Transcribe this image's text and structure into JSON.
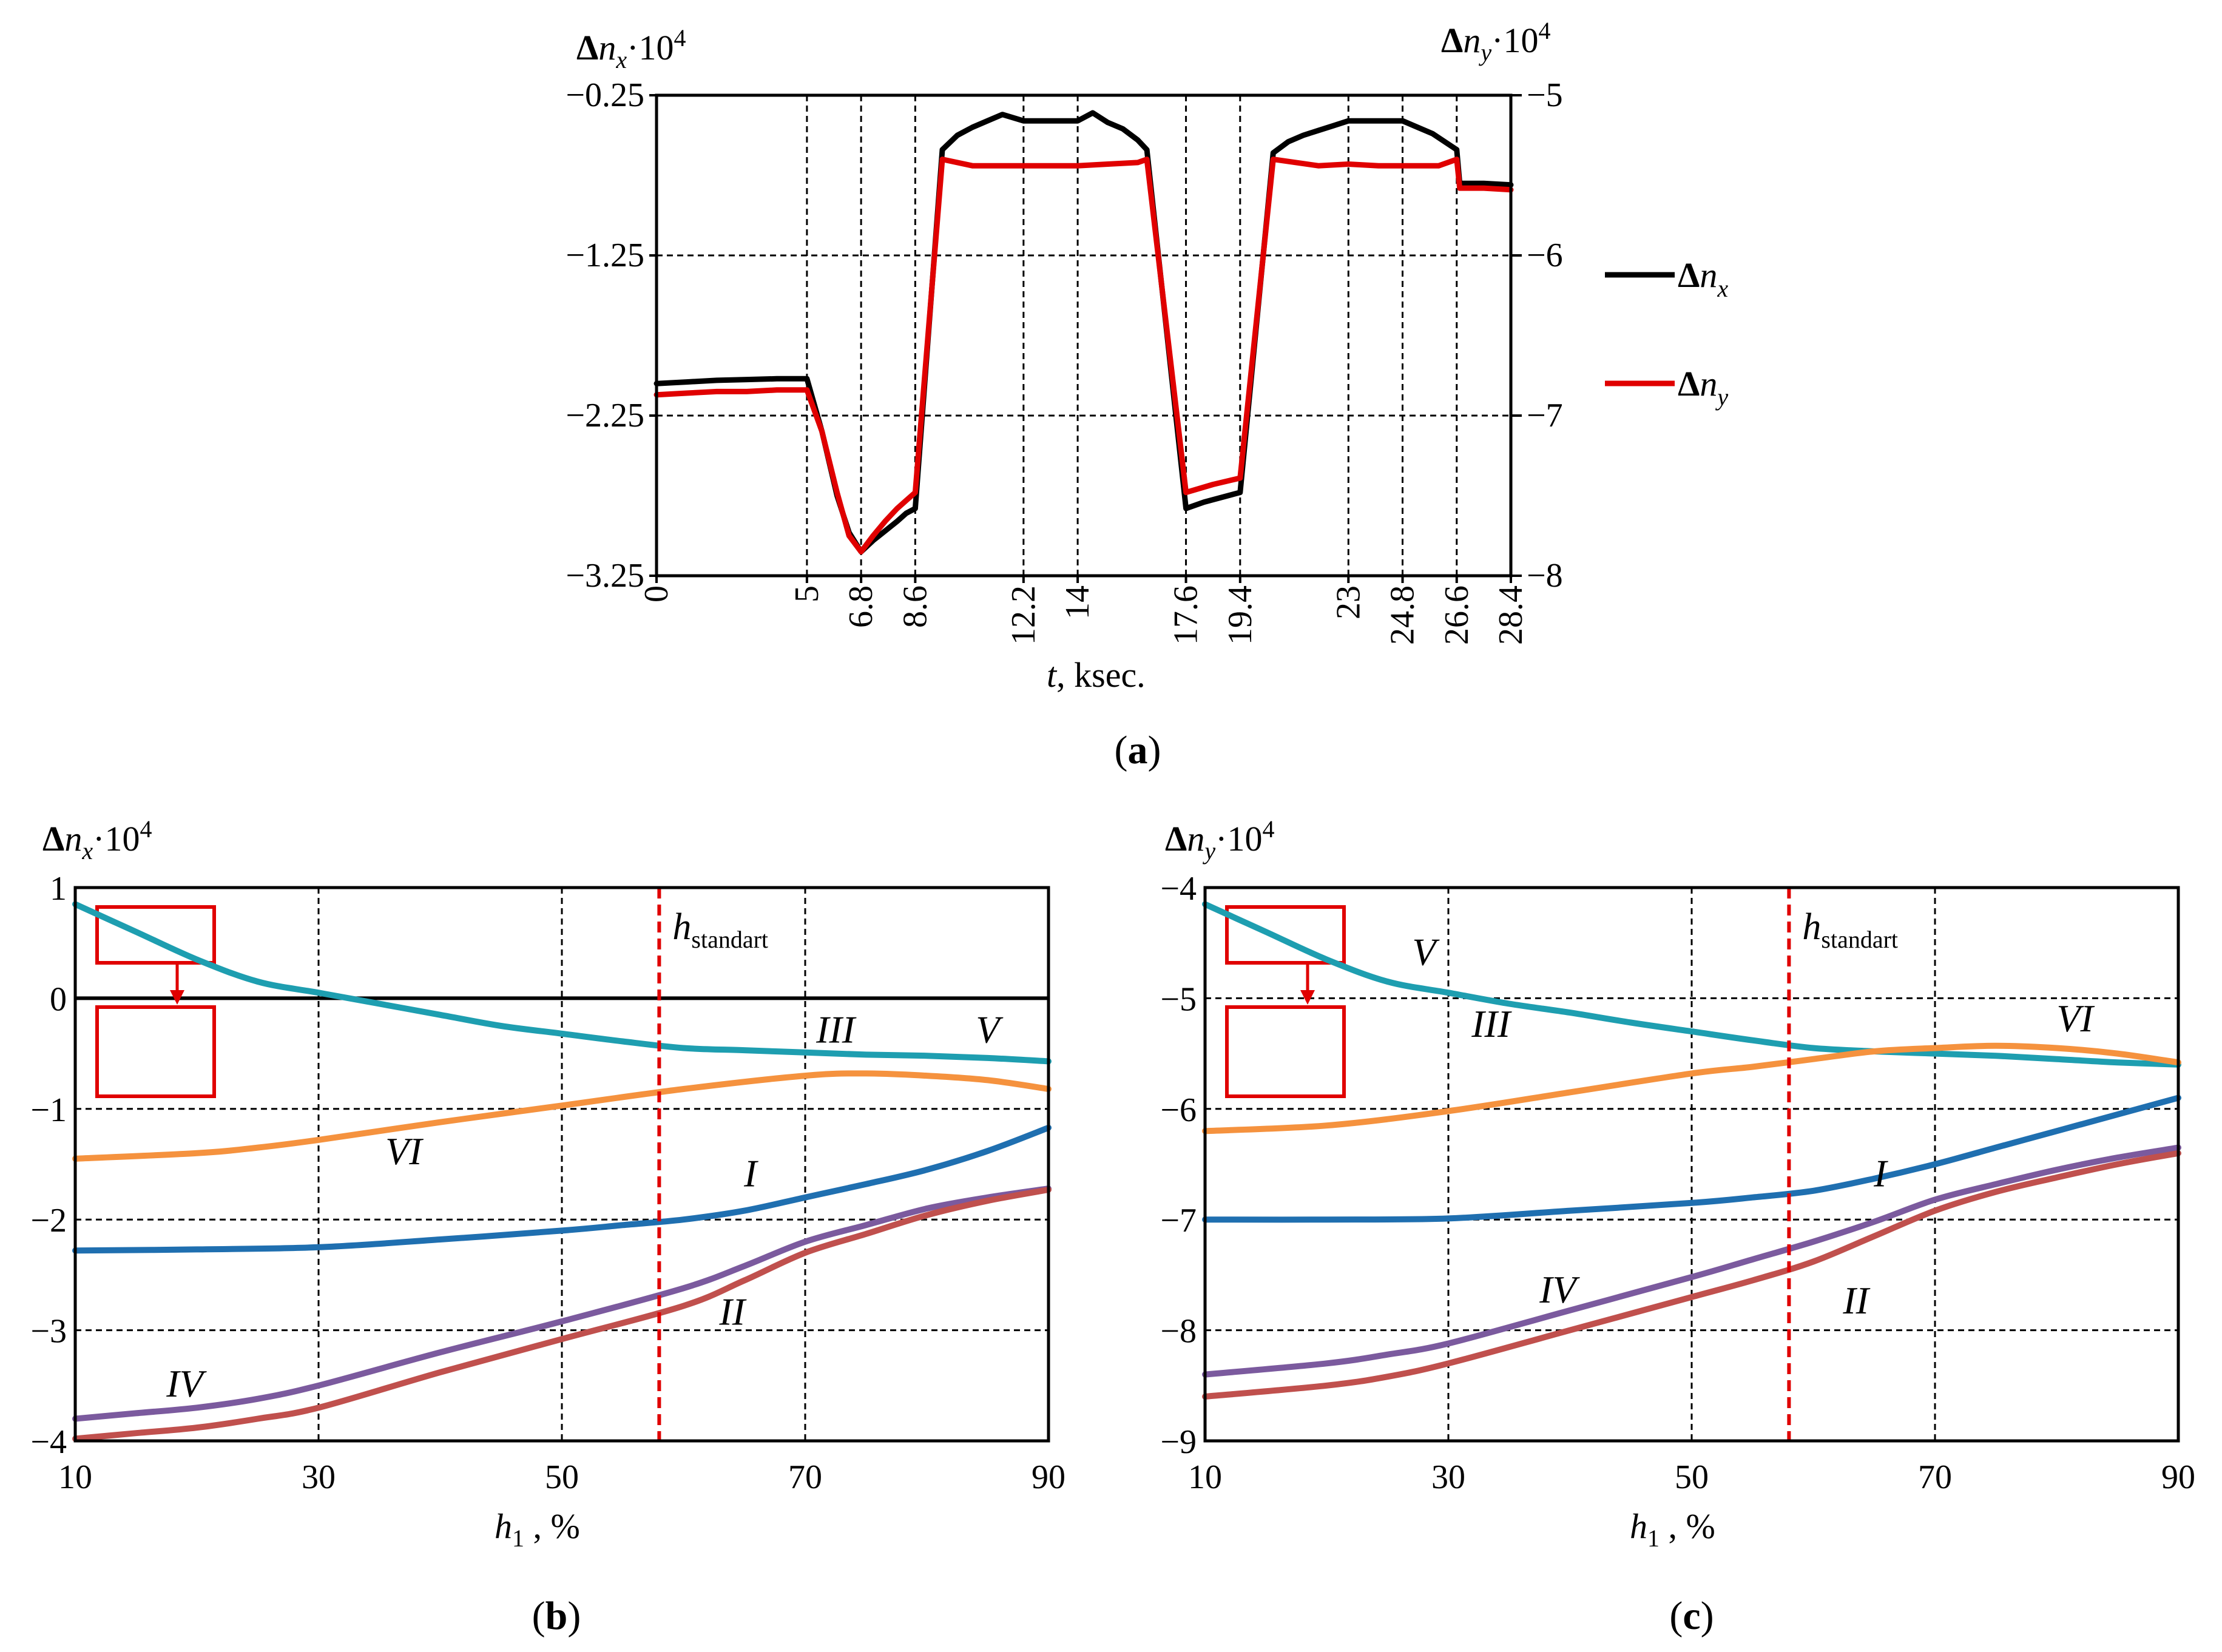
{
  "chart_data": [
    {
      "id": "a",
      "type": "line",
      "caption": "a",
      "xlabel_var": "t",
      "xlabel_unit": ", ksec.",
      "xticks": [
        "0",
        "5",
        "6.8",
        "8.6",
        "12.2",
        "14",
        "17.6",
        "19.4",
        "23",
        "24.8",
        "26.6",
        "28.4"
      ],
      "ylabel_left": {
        "delta": "Δ",
        "var": "n",
        "sub": "x",
        "mult": "·10",
        "sup": "4"
      },
      "ylabel_right": {
        "delta": "Δ",
        "var": "n",
        "sub": "y",
        "mult": "·10",
        "sup": "4"
      },
      "ylim_left": [
        -3.25,
        -0.25
      ],
      "ylim_right": [
        -8,
        -5
      ],
      "yticks_left": [
        "-0.25",
        "-1.25",
        "-2.25",
        "-3.25"
      ],
      "yticks_right": [
        "-5",
        "-6",
        "-7",
        "-8"
      ],
      "legend": [
        {
          "delta": "Δ",
          "var": "n",
          "sub": "x",
          "color": "#000000"
        },
        {
          "delta": "Δ",
          "var": "n",
          "sub": "y",
          "color": "#e00000"
        }
      ],
      "series": [
        {
          "name": "Δn_x",
          "axis": "left",
          "color": "#000000",
          "x": [
            0,
            1,
            2,
            3,
            4,
            5,
            5.5,
            6,
            6.4,
            6.8,
            7.2,
            7.6,
            8,
            8.3,
            8.6,
            9.5,
            10,
            10.5,
            11,
            11.5,
            12.2,
            13,
            14,
            14.5,
            15,
            15.5,
            16,
            16.3,
            17.6,
            18.2,
            18.8,
            19.4,
            20.5,
            21,
            21.5,
            22,
            22.5,
            23,
            24,
            24.8,
            25.3,
            25.8,
            26.6,
            26.7,
            27.5,
            28.4
          ],
          "y": [
            -2.05,
            -2.04,
            -2.03,
            -2.025,
            -2.02,
            -2.02,
            -2.35,
            -2.75,
            -2.98,
            -3.1,
            -3.03,
            -2.97,
            -2.91,
            -2.86,
            -2.83,
            -0.59,
            -0.5,
            -0.45,
            -0.41,
            -0.37,
            -0.41,
            -0.41,
            -0.41,
            -0.36,
            -0.42,
            -0.46,
            -0.53,
            -0.59,
            -2.83,
            -2.79,
            -2.76,
            -2.73,
            -0.61,
            -0.54,
            -0.5,
            -0.47,
            -0.44,
            -0.41,
            -0.41,
            -0.41,
            -0.45,
            -0.49,
            -0.59,
            -0.8,
            -0.8,
            -0.81
          ]
        },
        {
          "name": "Δn_y",
          "axis": "right",
          "color": "#e00000",
          "x": [
            0,
            1,
            2,
            3,
            4,
            5,
            5.5,
            6,
            6.4,
            6.8,
            7.2,
            7.6,
            8,
            8.3,
            8.6,
            9.5,
            10.5,
            12.2,
            13,
            14,
            15,
            16,
            16.3,
            17.6,
            18.5,
            19.4,
            20.5,
            22,
            23,
            24,
            24.8,
            26,
            26.6,
            26.7,
            27.5,
            28.4
          ],
          "y": [
            -6.87,
            -6.86,
            -6.85,
            -6.85,
            -6.84,
            -6.84,
            -7.1,
            -7.48,
            -7.75,
            -7.85,
            -7.75,
            -7.66,
            -7.58,
            -7.53,
            -7.48,
            -5.4,
            -5.44,
            -5.44,
            -5.44,
            -5.44,
            -5.43,
            -5.42,
            -5.4,
            -7.48,
            -7.43,
            -7.39,
            -5.4,
            -5.44,
            -5.43,
            -5.44,
            -5.44,
            -5.44,
            -5.4,
            -5.58,
            -5.58,
            -5.59
          ]
        }
      ]
    },
    {
      "id": "b",
      "type": "line",
      "caption": "b",
      "xlabel_var": "h",
      "xlabel_sub": "1",
      "xlabel_unit": " , %",
      "xlim": [
        10,
        90
      ],
      "xticks": [
        "10",
        "30",
        "50",
        "70",
        "90"
      ],
      "ylabel": {
        "delta": "Δ",
        "var": "n",
        "sub": "x",
        "mult": "·10",
        "sup": "4"
      },
      "ylim": [
        -4,
        1
      ],
      "yticks": [
        "1",
        "0",
        "-1",
        "-2",
        "-3",
        "-4"
      ],
      "h_standart": 58,
      "annotation": {
        "var": "h",
        "sub": "standart"
      },
      "series": [
        {
          "name": "V",
          "color": "#1e9eb0",
          "x": [
            10,
            15,
            20,
            25,
            30,
            35,
            40,
            45,
            50,
            55,
            60,
            65,
            70,
            75,
            80,
            85,
            90
          ],
          "y": [
            0.85,
            0.6,
            0.35,
            0.15,
            0.05,
            -0.05,
            -0.15,
            -0.25,
            -0.32,
            -0.39,
            -0.45,
            -0.47,
            -0.49,
            -0.51,
            -0.52,
            -0.54,
            -0.57
          ]
        },
        {
          "name": "VI",
          "color": "#f5923e",
          "x": [
            10,
            20,
            25,
            30,
            40,
            50,
            60,
            70,
            75,
            80,
            85,
            90
          ],
          "y": [
            -1.45,
            -1.4,
            -1.35,
            -1.28,
            -1.12,
            -0.97,
            -0.82,
            -0.7,
            -0.68,
            -0.7,
            -0.74,
            -0.82
          ]
        },
        {
          "name": "I",
          "color": "#1f6fb0",
          "x": [
            10,
            20,
            30,
            40,
            50,
            55,
            60,
            65,
            70,
            75,
            80,
            85,
            90
          ],
          "y": [
            -2.28,
            -2.27,
            -2.25,
            -2.18,
            -2.1,
            -2.05,
            -2.0,
            -1.92,
            -1.8,
            -1.68,
            -1.55,
            -1.38,
            -1.17
          ]
        },
        {
          "name": "IV",
          "color": "#7b5a9e",
          "x": [
            10,
            15,
            20,
            25,
            30,
            40,
            50,
            60,
            65,
            70,
            75,
            80,
            85,
            90
          ],
          "y": [
            -3.8,
            -3.75,
            -3.7,
            -3.62,
            -3.5,
            -3.2,
            -2.92,
            -2.62,
            -2.42,
            -2.2,
            -2.05,
            -1.9,
            -1.8,
            -1.72
          ]
        },
        {
          "name": "II",
          "color": "#c0504d",
          "x": [
            10,
            15,
            20,
            25,
            30,
            40,
            50,
            60,
            65,
            70,
            75,
            80,
            85,
            90
          ],
          "y": [
            -3.98,
            -3.93,
            -3.88,
            -3.8,
            -3.7,
            -3.38,
            -3.08,
            -2.78,
            -2.55,
            -2.3,
            -2.13,
            -1.96,
            -1.83,
            -1.73
          ]
        }
      ],
      "series_labels": [
        {
          "name": "III",
          "x": 72.5,
          "y": -0.4
        },
        {
          "name": "V",
          "x": 85,
          "y": -0.4
        },
        {
          "name": "VI",
          "x": 37,
          "y": -1.5
        },
        {
          "name": "I",
          "x": 65.5,
          "y": -1.7
        },
        {
          "name": "II",
          "x": 64,
          "y": -2.95
        },
        {
          "name": "IV",
          "x": 19,
          "y": -3.6
        }
      ]
    },
    {
      "id": "c",
      "type": "line",
      "caption": "c",
      "xlabel_var": "h",
      "xlabel_sub": "1",
      "xlabel_unit": " , %",
      "xlim": [
        10,
        90
      ],
      "xticks": [
        "10",
        "30",
        "50",
        "70",
        "90"
      ],
      "ylabel": {
        "delta": "Δ",
        "var": "n",
        "sub": "y",
        "mult": "·10",
        "sup": "4"
      },
      "ylim": [
        -9,
        -4
      ],
      "yticks": [
        "-4",
        "-5",
        "-6",
        "-7",
        "-8",
        "-9"
      ],
      "h_standart": 58,
      "annotation": {
        "var": "h",
        "sub": "standart"
      },
      "series": [
        {
          "name": "V",
          "color": "#1e9eb0",
          "x": [
            10,
            15,
            20,
            25,
            30,
            35,
            40,
            45,
            50,
            55,
            60,
            65,
            70,
            75,
            80,
            85,
            90
          ],
          "y": [
            -4.15,
            -4.4,
            -4.65,
            -4.85,
            -4.95,
            -5.05,
            -5.13,
            -5.22,
            -5.3,
            -5.38,
            -5.45,
            -5.48,
            -5.5,
            -5.52,
            -5.55,
            -5.58,
            -5.6
          ]
        },
        {
          "name": "VI",
          "color": "#f5923e",
          "x": [
            10,
            20,
            30,
            40,
            50,
            55,
            60,
            65,
            70,
            75,
            80,
            85,
            90
          ],
          "y": [
            -6.2,
            -6.15,
            -6.02,
            -5.85,
            -5.68,
            -5.62,
            -5.55,
            -5.48,
            -5.45,
            -5.43,
            -5.45,
            -5.5,
            -5.58
          ]
        },
        {
          "name": "I",
          "color": "#1f6fb0",
          "x": [
            10,
            20,
            30,
            40,
            50,
            55,
            60,
            65,
            70,
            75,
            80,
            85,
            90
          ],
          "y": [
            -7.0,
            -7.0,
            -6.99,
            -6.92,
            -6.85,
            -6.8,
            -6.74,
            -6.63,
            -6.5,
            -6.35,
            -6.2,
            -6.05,
            -5.9
          ]
        },
        {
          "name": "IV",
          "color": "#7b5a9e",
          "x": [
            10,
            20,
            25,
            30,
            40,
            50,
            55,
            60,
            65,
            70,
            75,
            80,
            85,
            90
          ],
          "y": [
            -8.4,
            -8.3,
            -8.22,
            -8.12,
            -7.82,
            -7.52,
            -7.36,
            -7.2,
            -7.02,
            -6.82,
            -6.68,
            -6.55,
            -6.44,
            -6.35
          ]
        },
        {
          "name": "II",
          "color": "#c0504d",
          "x": [
            10,
            20,
            25,
            30,
            40,
            50,
            55,
            60,
            65,
            70,
            75,
            80,
            85,
            90
          ],
          "y": [
            -8.6,
            -8.5,
            -8.42,
            -8.3,
            -8.0,
            -7.7,
            -7.55,
            -7.38,
            -7.15,
            -6.92,
            -6.75,
            -6.62,
            -6.5,
            -6.4
          ]
        }
      ],
      "series_labels": [
        {
          "name": "V",
          "x": 28,
          "y": -4.7
        },
        {
          "name": "III",
          "x": 33.5,
          "y": -5.35
        },
        {
          "name": "VI",
          "x": 81.5,
          "y": -5.3
        },
        {
          "name": "I",
          "x": 65.5,
          "y": -6.7
        },
        {
          "name": "IV",
          "x": 39,
          "y": -7.75
        },
        {
          "name": "II",
          "x": 63.5,
          "y": -7.85
        }
      ]
    }
  ]
}
